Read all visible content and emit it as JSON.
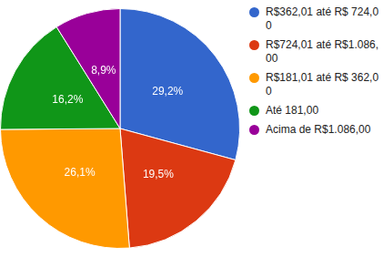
{
  "chart_data": {
    "type": "pie",
    "categories": [
      "R$362,01 até R$ 724,00",
      "R$724,01 até R$1.086,00",
      "R$181,01 até R$ 362,00",
      "Até 181,00",
      "Acima de R$1.086,00"
    ],
    "values": [
      29.2,
      19.5,
      26.1,
      16.2,
      8.9
    ],
    "value_labels": [
      "29,2%",
      "19,5%",
      "26,1%",
      "16,2%",
      "8,9%"
    ],
    "colors": [
      "#3366cc",
      "#dc3912",
      "#ff9900",
      "#109618",
      "#990099"
    ],
    "data_labels": true,
    "legend": "right"
  }
}
